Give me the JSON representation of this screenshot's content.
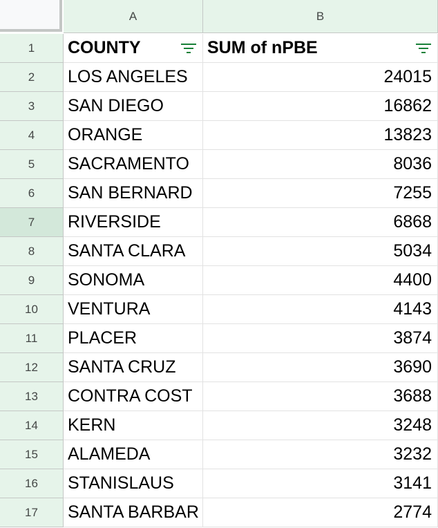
{
  "columns": [
    "A",
    "B"
  ],
  "header": {
    "row_number": "1",
    "county": "COUNTY",
    "sum": "SUM of nPBE"
  },
  "rows": [
    {
      "n": "2",
      "county": "LOS ANGELES",
      "value": "24015"
    },
    {
      "n": "3",
      "county": "SAN DIEGO",
      "value": "16862"
    },
    {
      "n": "4",
      "county": "ORANGE",
      "value": "13823"
    },
    {
      "n": "5",
      "county": "SACRAMENTO",
      "value": "8036"
    },
    {
      "n": "6",
      "county": "SAN BERNARD",
      "value": "7255"
    },
    {
      "n": "7",
      "county": "RIVERSIDE",
      "value": "6868"
    },
    {
      "n": "8",
      "county": "SANTA CLARA",
      "value": "5034"
    },
    {
      "n": "9",
      "county": "SONOMA",
      "value": "4400"
    },
    {
      "n": "10",
      "county": "VENTURA",
      "value": "4143"
    },
    {
      "n": "11",
      "county": "PLACER",
      "value": "3874"
    },
    {
      "n": "12",
      "county": "SANTA CRUZ",
      "value": "3690"
    },
    {
      "n": "13",
      "county": "CONTRA COST",
      "value": "3688"
    },
    {
      "n": "14",
      "county": "KERN",
      "value": "3248"
    },
    {
      "n": "15",
      "county": "ALAMEDA",
      "value": "3232"
    },
    {
      "n": "16",
      "county": "STANISLAUS",
      "value": "3141"
    },
    {
      "n": "17",
      "county": "SANTA BARBAR",
      "value": "2774"
    }
  ],
  "selected_row": "7",
  "colors": {
    "header_bg": "#e6f4ea",
    "filter_icon": "#188038",
    "gridline": "#e2e2e2"
  },
  "icons": {
    "filter": "filter-icon"
  }
}
